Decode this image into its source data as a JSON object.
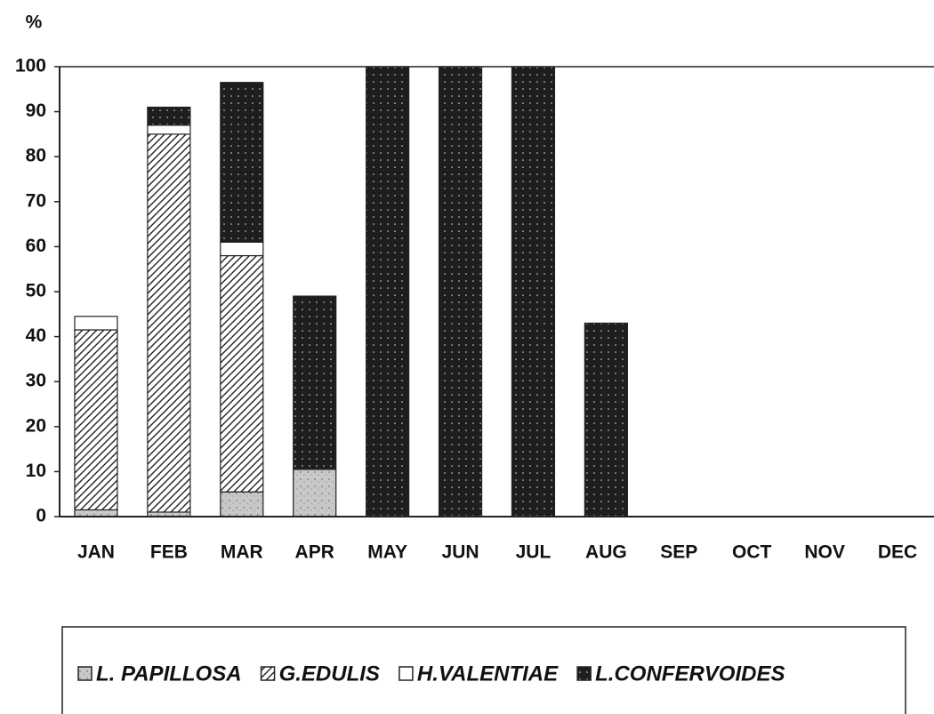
{
  "chart_data": {
    "type": "stacked_bar",
    "ylabel": "%",
    "categories": [
      "JAN",
      "FEB",
      "MAR",
      "APR",
      "MAY",
      "JUN",
      "JUL",
      "AUG",
      "SEP",
      "OCT",
      "NOV",
      "DEC"
    ],
    "series": [
      {
        "name": "L. PAPILLOSA",
        "color": "#c8c8c8",
        "pattern": "speckle",
        "values": [
          1.5,
          1,
          5.5,
          10.5,
          0,
          0,
          0,
          0,
          0,
          0,
          0,
          0
        ]
      },
      {
        "name": "G.EDULIS",
        "color": "#ffffff",
        "pattern": "hatch",
        "values": [
          40,
          84,
          52.5,
          0,
          0,
          0,
          0,
          0,
          0,
          0,
          0,
          0
        ]
      },
      {
        "name": "H.VALENTIAE",
        "color": "#ffffff",
        "pattern": "none",
        "values": [
          3,
          2,
          3,
          0,
          0,
          0,
          0,
          0,
          0,
          0,
          0,
          0
        ]
      },
      {
        "name": "L.CONFERVOIDES",
        "color": "#1e1e1e",
        "pattern": "dots",
        "values": [
          0,
          4,
          35.5,
          38.5,
          100,
          100,
          100,
          43,
          0,
          0,
          0,
          0
        ]
      }
    ],
    "ylim": [
      0,
      100
    ],
    "yticks": [
      0,
      10,
      20,
      30,
      40,
      50,
      60,
      70,
      80,
      90,
      100
    ],
    "grid": false,
    "legend": "bottom"
  }
}
